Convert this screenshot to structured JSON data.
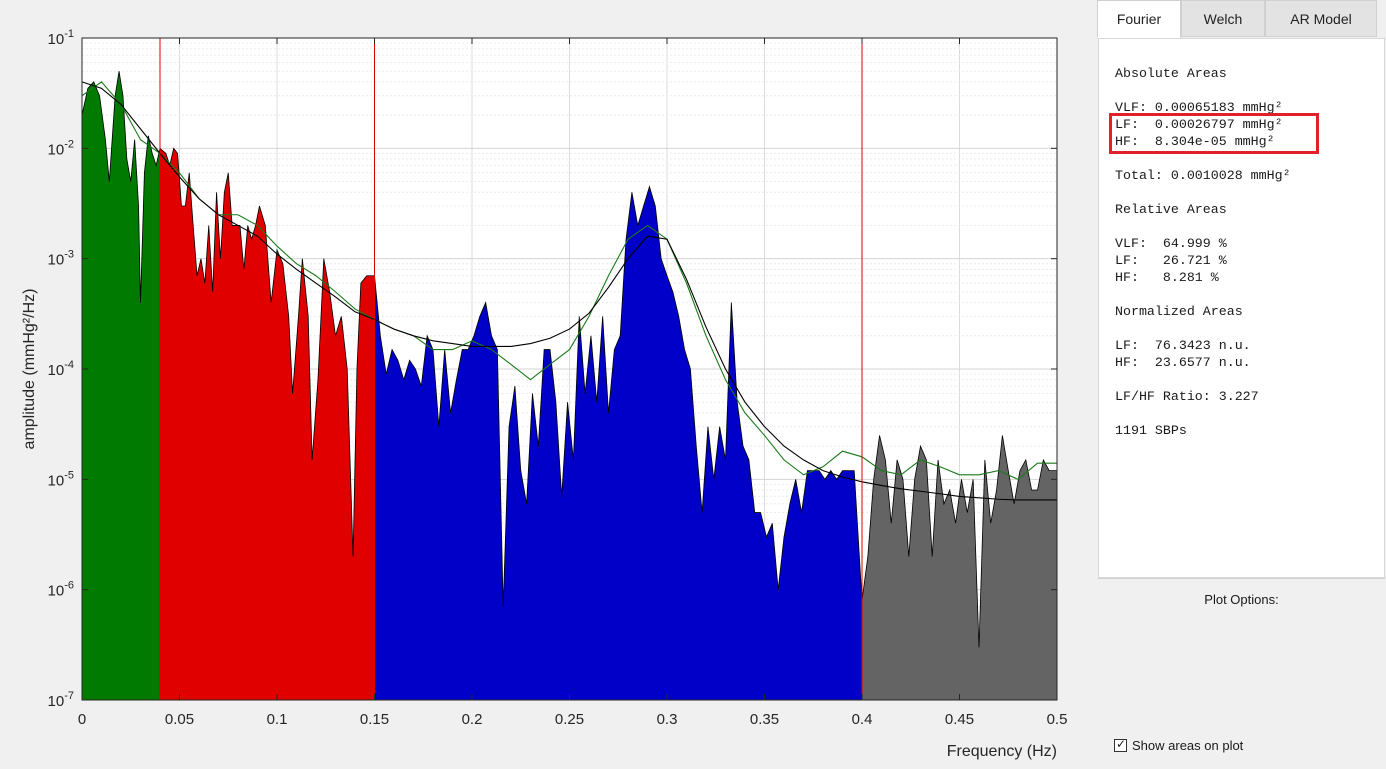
{
  "tabs": [
    {
      "label": "Fourier",
      "active": true
    },
    {
      "label": "Welch",
      "active": false
    },
    {
      "label": "AR Model",
      "active": false
    }
  ],
  "stats": {
    "abs_title": "Absolute Areas",
    "vlf_abs": "VLF: 0.00065183 mmHg²",
    "lf_abs": "LF:  0.00026797 mmHg²",
    "hf_abs": "HF:  8.304e-05 mmHg²",
    "total": "Total: 0.0010028 mmHg²",
    "rel_title": "Relative Areas",
    "vlf_rel": "VLF:  64.999 %",
    "lf_rel": "LF:   26.721 %",
    "hf_rel": "HF:   8.281 %",
    "norm_title": "Normalized Areas",
    "lf_norm": "LF:  76.3423 n.u.",
    "hf_norm": "HF:  23.6577 n.u.",
    "ratio": "LF/HF Ratio: 3.227",
    "sbps": "1191 SBPs"
  },
  "options": {
    "title": "Plot Options:",
    "show_areas_label": "Show areas on plot",
    "show_areas_checked": true
  },
  "chart_data": {
    "type": "area",
    "xlabel": "Frequency (Hz)",
    "ylabel": "amplitude (mmHg²/Hz)",
    "xlim": [
      0,
      0.5
    ],
    "ylim": [
      1e-07,
      0.1
    ],
    "yscale": "log",
    "grid": true,
    "x_ticks": [
      "0",
      "0.05",
      "0.1",
      "0.15",
      "0.2",
      "0.25",
      "0.3",
      "0.35",
      "0.4",
      "0.45",
      "0.5"
    ],
    "y_ticks": [
      {
        "base": "10",
        "exp": "-7"
      },
      {
        "base": "10",
        "exp": "-6"
      },
      {
        "base": "10",
        "exp": "-5"
      },
      {
        "base": "10",
        "exp": "-4"
      },
      {
        "base": "10",
        "exp": "-3"
      },
      {
        "base": "10",
        "exp": "-2"
      },
      {
        "base": "10",
        "exp": "-1"
      }
    ],
    "band_edges": [
      0.04,
      0.15,
      0.4
    ],
    "band_colors": {
      "VLF": "#007a00",
      "LF": "#e00000",
      "HF": "#0000c8",
      "rest": "#646464"
    },
    "spectrum": [
      [
        0.0,
        0.02
      ],
      [
        0.003,
        0.035
      ],
      [
        0.006,
        0.04
      ],
      [
        0.009,
        0.03
      ],
      [
        0.012,
        0.012
      ],
      [
        0.014,
        0.005
      ],
      [
        0.017,
        0.03
      ],
      [
        0.019,
        0.05
      ],
      [
        0.021,
        0.03
      ],
      [
        0.023,
        0.008
      ],
      [
        0.025,
        0.005
      ],
      [
        0.027,
        0.012
      ],
      [
        0.029,
        0.003
      ],
      [
        0.03,
        0.0004
      ],
      [
        0.032,
        0.006
      ],
      [
        0.034,
        0.013
      ],
      [
        0.036,
        0.009
      ],
      [
        0.038,
        0.007
      ],
      [
        0.04,
        0.01
      ],
      [
        0.043,
        0.009
      ],
      [
        0.045,
        0.007
      ],
      [
        0.047,
        0.01
      ],
      [
        0.049,
        0.009
      ],
      [
        0.051,
        0.003
      ],
      [
        0.053,
        0.003
      ],
      [
        0.055,
        0.006
      ],
      [
        0.057,
        0.002
      ],
      [
        0.059,
        0.0007
      ],
      [
        0.061,
        0.001
      ],
      [
        0.063,
        0.0006
      ],
      [
        0.065,
        0.002
      ],
      [
        0.067,
        0.0005
      ],
      [
        0.069,
        0.004
      ],
      [
        0.071,
        0.001
      ],
      [
        0.073,
        0.004
      ],
      [
        0.075,
        0.006
      ],
      [
        0.077,
        0.002
      ],
      [
        0.079,
        0.002
      ],
      [
        0.081,
        0.002
      ],
      [
        0.083,
        0.0008
      ],
      [
        0.085,
        0.002
      ],
      [
        0.087,
        0.0015
      ],
      [
        0.089,
        0.002
      ],
      [
        0.091,
        0.003
      ],
      [
        0.094,
        0.002
      ],
      [
        0.097,
        0.0004
      ],
      [
        0.1,
        0.0012
      ],
      [
        0.103,
        0.0009
      ],
      [
        0.106,
        0.0003
      ],
      [
        0.108,
        6e-05
      ],
      [
        0.111,
        0.0003
      ],
      [
        0.113,
        0.001
      ],
      [
        0.116,
        0.0003
      ],
      [
        0.118,
        1.5e-05
      ],
      [
        0.121,
        8e-05
      ],
      [
        0.124,
        0.001
      ],
      [
        0.127,
        0.0005
      ],
      [
        0.13,
        0.0002
      ],
      [
        0.133,
        0.0003
      ],
      [
        0.136,
        0.0001
      ],
      [
        0.139,
        2e-06
      ],
      [
        0.141,
        0.0001
      ],
      [
        0.143,
        0.0006
      ],
      [
        0.146,
        0.0007
      ],
      [
        0.15,
        0.0007
      ],
      [
        0.153,
        0.0002
      ],
      [
        0.156,
        9e-05
      ],
      [
        0.159,
        0.00015
      ],
      [
        0.162,
        0.00012
      ],
      [
        0.165,
        8e-05
      ],
      [
        0.168,
        0.00012
      ],
      [
        0.171,
        0.0001
      ],
      [
        0.174,
        7e-05
      ],
      [
        0.177,
        0.0002
      ],
      [
        0.18,
        0.00015
      ],
      [
        0.183,
        3e-05
      ],
      [
        0.186,
        0.00015
      ],
      [
        0.189,
        4e-05
      ],
      [
        0.192,
        8e-05
      ],
      [
        0.195,
        0.00015
      ],
      [
        0.198,
        0.00015
      ],
      [
        0.201,
        0.0002
      ],
      [
        0.204,
        0.0003
      ],
      [
        0.207,
        0.0004
      ],
      [
        0.21,
        0.0002
      ],
      [
        0.213,
        0.00015
      ],
      [
        0.216,
        7e-07
      ],
      [
        0.219,
        3e-05
      ],
      [
        0.222,
        7e-05
      ],
      [
        0.225,
        1.2e-05
      ],
      [
        0.228,
        6e-06
      ],
      [
        0.231,
        6e-05
      ],
      [
        0.234,
        2e-05
      ],
      [
        0.237,
        0.00015
      ],
      [
        0.24,
        0.00015
      ],
      [
        0.243,
        5e-05
      ],
      [
        0.246,
        7e-06
      ],
      [
        0.249,
        5e-05
      ],
      [
        0.252,
        1.5e-05
      ],
      [
        0.255,
        0.0003
      ],
      [
        0.258,
        6e-05
      ],
      [
        0.261,
        0.0002
      ],
      [
        0.264,
        5e-05
      ],
      [
        0.267,
        0.0003
      ],
      [
        0.27,
        4e-05
      ],
      [
        0.273,
        0.00015
      ],
      [
        0.276,
        0.0002
      ],
      [
        0.279,
        0.0015
      ],
      [
        0.282,
        0.004
      ],
      [
        0.285,
        0.002
      ],
      [
        0.288,
        0.003
      ],
      [
        0.291,
        0.0045
      ],
      [
        0.294,
        0.003
      ],
      [
        0.297,
        0.001
      ],
      [
        0.3,
        0.0007
      ],
      [
        0.303,
        0.0005
      ],
      [
        0.306,
        0.0003
      ],
      [
        0.309,
        0.00015
      ],
      [
        0.312,
        0.0001
      ],
      [
        0.315,
        2e-05
      ],
      [
        0.318,
        5e-06
      ],
      [
        0.321,
        3e-05
      ],
      [
        0.324,
        1e-05
      ],
      [
        0.327,
        3e-05
      ],
      [
        0.33,
        1.5e-05
      ],
      [
        0.333,
        0.0004
      ],
      [
        0.336,
        5e-05
      ],
      [
        0.339,
        2e-05
      ],
      [
        0.342,
        1.5e-05
      ],
      [
        0.345,
        5e-06
      ],
      [
        0.348,
        5e-06
      ],
      [
        0.351,
        3e-06
      ],
      [
        0.354,
        4e-06
      ],
      [
        0.357,
        1e-06
      ],
      [
        0.36,
        3e-06
      ],
      [
        0.363,
        6e-06
      ],
      [
        0.366,
        1e-05
      ],
      [
        0.369,
        5e-06
      ],
      [
        0.372,
        1.2e-05
      ],
      [
        0.375,
        1.2e-05
      ],
      [
        0.378,
        1.2e-05
      ],
      [
        0.381,
        1e-05
      ],
      [
        0.384,
        1.2e-05
      ],
      [
        0.387,
        1e-05
      ],
      [
        0.39,
        1.2e-05
      ],
      [
        0.393,
        1.2e-05
      ],
      [
        0.396,
        1.2e-05
      ],
      [
        0.4,
        8e-07
      ],
      [
        0.403,
        2e-06
      ],
      [
        0.406,
        1e-05
      ],
      [
        0.409,
        2.5e-05
      ],
      [
        0.412,
        1.5e-05
      ],
      [
        0.415,
        4e-06
      ],
      [
        0.418,
        1.5e-05
      ],
      [
        0.421,
        1e-05
      ],
      [
        0.424,
        2e-06
      ],
      [
        0.427,
        1e-05
      ],
      [
        0.43,
        2e-05
      ],
      [
        0.433,
        1.5e-05
      ],
      [
        0.436,
        2e-06
      ],
      [
        0.439,
        1.5e-05
      ],
      [
        0.442,
        6e-06
      ],
      [
        0.445,
        8e-06
      ],
      [
        0.448,
        4e-06
      ],
      [
        0.451,
        1e-05
      ],
      [
        0.454,
        5e-06
      ],
      [
        0.457,
        1e-05
      ],
      [
        0.46,
        3e-07
      ],
      [
        0.463,
        1.5e-05
      ],
      [
        0.466,
        4e-06
      ],
      [
        0.469,
        8e-06
      ],
      [
        0.472,
        2.5e-05
      ],
      [
        0.475,
        1.2e-05
      ],
      [
        0.478,
        6e-06
      ],
      [
        0.481,
        1.2e-05
      ],
      [
        0.484,
        1.5e-05
      ],
      [
        0.487,
        8e-06
      ],
      [
        0.49,
        8e-06
      ],
      [
        0.493,
        1.5e-05
      ],
      [
        0.496,
        1.2e-05
      ],
      [
        0.5,
        1.2e-05
      ]
    ],
    "smooth_green": [
      [
        0.0,
        0.03
      ],
      [
        0.01,
        0.04
      ],
      [
        0.02,
        0.025
      ],
      [
        0.03,
        0.012
      ],
      [
        0.04,
        0.009
      ],
      [
        0.05,
        0.006
      ],
      [
        0.06,
        0.0035
      ],
      [
        0.07,
        0.0025
      ],
      [
        0.08,
        0.0025
      ],
      [
        0.09,
        0.002
      ],
      [
        0.1,
        0.0013
      ],
      [
        0.11,
        0.0009
      ],
      [
        0.12,
        0.0007
      ],
      [
        0.13,
        0.0005
      ],
      [
        0.14,
        0.00035
      ],
      [
        0.15,
        0.00028
      ],
      [
        0.16,
        0.00023
      ],
      [
        0.17,
        0.0002
      ],
      [
        0.18,
        0.00015
      ],
      [
        0.19,
        0.00015
      ],
      [
        0.2,
        0.00018
      ],
      [
        0.21,
        0.00015
      ],
      [
        0.22,
        0.00011
      ],
      [
        0.23,
        8e-05
      ],
      [
        0.24,
        0.00011
      ],
      [
        0.25,
        0.00015
      ],
      [
        0.26,
        0.0003
      ],
      [
        0.27,
        0.0007
      ],
      [
        0.28,
        0.0015
      ],
      [
        0.29,
        0.002
      ],
      [
        0.3,
        0.0015
      ],
      [
        0.31,
        0.0006
      ],
      [
        0.32,
        0.0002
      ],
      [
        0.33,
        8e-05
      ],
      [
        0.34,
        4e-05
      ],
      [
        0.35,
        2.5e-05
      ],
      [
        0.36,
        1.5e-05
      ],
      [
        0.37,
        1.1e-05
      ],
      [
        0.38,
        1.3e-05
      ],
      [
        0.39,
        1.8e-05
      ],
      [
        0.4,
        1.6e-05
      ],
      [
        0.41,
        1.2e-05
      ],
      [
        0.42,
        1.1e-05
      ],
      [
        0.43,
        1.5e-05
      ],
      [
        0.44,
        1.3e-05
      ],
      [
        0.45,
        1.1e-05
      ],
      [
        0.46,
        1.1e-05
      ],
      [
        0.47,
        1.2e-05
      ],
      [
        0.48,
        1e-05
      ],
      [
        0.49,
        1.4e-05
      ],
      [
        0.5,
        1.4e-05
      ]
    ],
    "smooth_black": [
      [
        0.0,
        0.04
      ],
      [
        0.01,
        0.035
      ],
      [
        0.02,
        0.025
      ],
      [
        0.03,
        0.015
      ],
      [
        0.04,
        0.009
      ],
      [
        0.05,
        0.0055
      ],
      [
        0.06,
        0.0035
      ],
      [
        0.07,
        0.0025
      ],
      [
        0.08,
        0.002
      ],
      [
        0.09,
        0.0016
      ],
      [
        0.1,
        0.0011
      ],
      [
        0.11,
        0.0008
      ],
      [
        0.12,
        0.0006
      ],
      [
        0.13,
        0.00045
      ],
      [
        0.14,
        0.00033
      ],
      [
        0.15,
        0.00028
      ],
      [
        0.16,
        0.00023
      ],
      [
        0.17,
        0.0002
      ],
      [
        0.18,
        0.00018
      ],
      [
        0.19,
        0.00017
      ],
      [
        0.2,
        0.00016
      ],
      [
        0.21,
        0.00016
      ],
      [
        0.22,
        0.00016
      ],
      [
        0.23,
        0.00017
      ],
      [
        0.24,
        0.00019
      ],
      [
        0.25,
        0.00023
      ],
      [
        0.26,
        0.00032
      ],
      [
        0.27,
        0.00055
      ],
      [
        0.28,
        0.001
      ],
      [
        0.29,
        0.0016
      ],
      [
        0.3,
        0.0015
      ],
      [
        0.31,
        0.00065
      ],
      [
        0.32,
        0.00024
      ],
      [
        0.33,
        0.0001
      ],
      [
        0.34,
        5e-05
      ],
      [
        0.35,
        3e-05
      ],
      [
        0.36,
        2e-05
      ],
      [
        0.37,
        1.5e-05
      ],
      [
        0.38,
        1.2e-05
      ],
      [
        0.39,
        1.05e-05
      ],
      [
        0.4,
        9.5e-06
      ],
      [
        0.41,
        8.8e-06
      ],
      [
        0.42,
        8.2e-06
      ],
      [
        0.43,
        7.8e-06
      ],
      [
        0.44,
        7.4e-06
      ],
      [
        0.45,
        7e-06
      ],
      [
        0.46,
        6.8e-06
      ],
      [
        0.47,
        6.6e-06
      ],
      [
        0.48,
        6.5e-06
      ],
      [
        0.49,
        6.5e-06
      ],
      [
        0.5,
        6.5e-06
      ]
    ]
  }
}
